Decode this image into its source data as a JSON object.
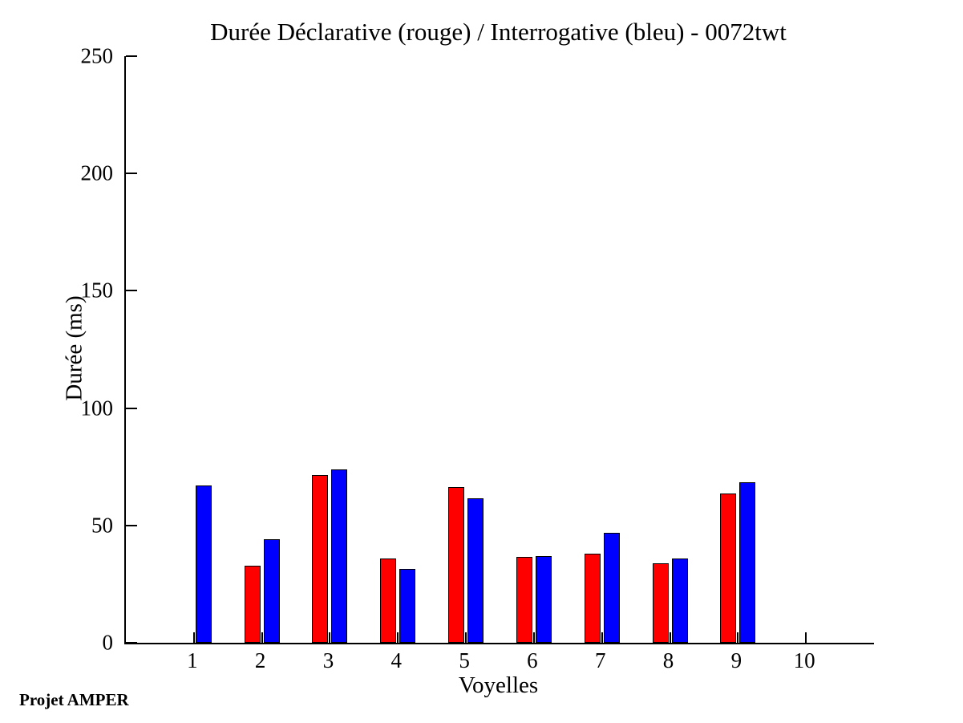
{
  "figure": {
    "footer_text": "Projet AMPER"
  },
  "chart_data": {
    "type": "bar",
    "title": "Durée Déclarative (rouge) / Interrogative (bleu) - 0072twt",
    "xlabel": "Voyelles",
    "ylabel": "Durée (ms)",
    "annotation": "Projet AMPER",
    "categories": [
      1,
      2,
      3,
      4,
      5,
      6,
      7,
      8,
      9,
      10
    ],
    "xticks": [
      1,
      2,
      3,
      4,
      5,
      6,
      7,
      8,
      9,
      10
    ],
    "series": [
      {
        "name": "Déclarative",
        "color": "#ff0000",
        "values": [
          0,
          33,
          71.5,
          36,
          66.5,
          36.5,
          38,
          34,
          63.5,
          0
        ]
      },
      {
        "name": "Interrogative",
        "color": "#0000ff",
        "values": [
          67,
          44,
          74,
          31.5,
          61.5,
          37,
          47,
          36,
          68.5,
          0
        ]
      }
    ],
    "ylim": [
      0,
      250
    ],
    "yticks": [
      0,
      50,
      100,
      150,
      200,
      250
    ],
    "xlim": [
      0,
      11
    ],
    "grid": false,
    "legend_position": "none",
    "background_color": "#ffffff",
    "axis_color": "#000000"
  }
}
